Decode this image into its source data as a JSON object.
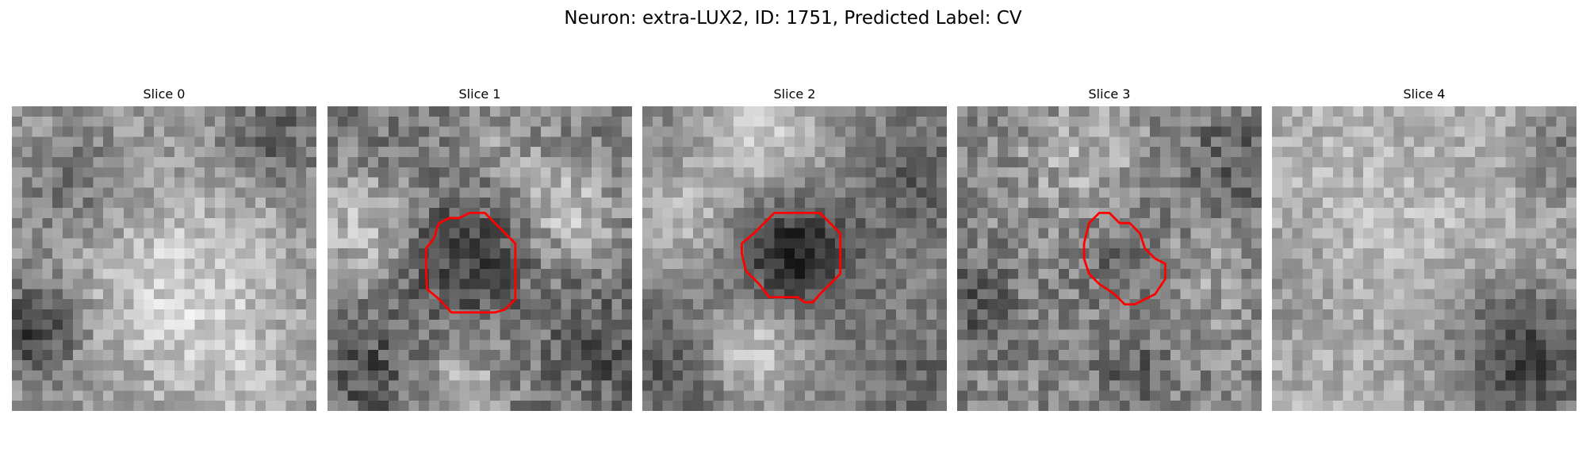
{
  "figure": {
    "title": "Neuron: extra-LUX2, ID: 1751, Predicted Label: CV"
  },
  "panels": [
    {
      "title": "Slice 0",
      "has_contour": false
    },
    {
      "title": "Slice 1",
      "has_contour": true
    },
    {
      "title": "Slice 2",
      "has_contour": true
    },
    {
      "title": "Slice 3",
      "has_contour": true
    },
    {
      "title": "Slice 4",
      "has_contour": false
    }
  ],
  "colors": {
    "contour": "#ff0000",
    "background": "#ffffff",
    "colormap": "gray"
  }
}
